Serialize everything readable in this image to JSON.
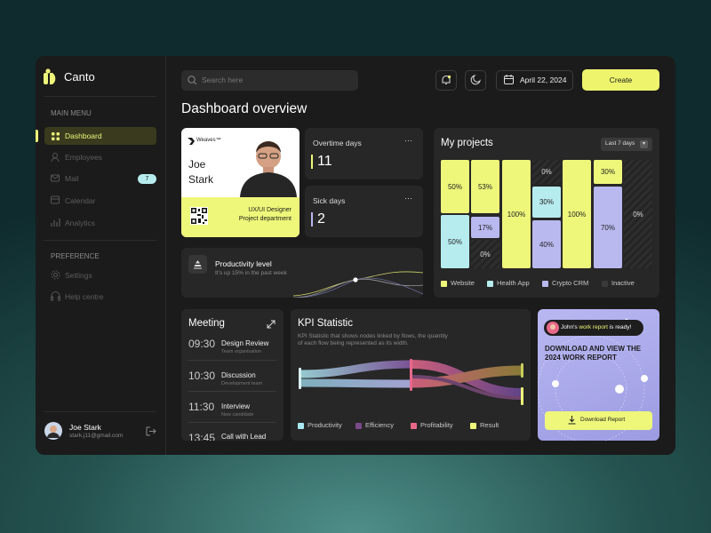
{
  "sidebar": {
    "brand": "Canto",
    "sections": [
      {
        "title": "MAIN MENU",
        "items": [
          {
            "label": "Dashboard"
          },
          {
            "label": "Employees"
          },
          {
            "label": "Mail",
            "badge": 7
          },
          {
            "label": "Calendar"
          },
          {
            "label": "Analytics"
          }
        ]
      },
      {
        "title": "PREFERENCE",
        "items": [
          {
            "label": "Settings"
          },
          {
            "label": "Help centre"
          }
        ]
      }
    ],
    "user": {
      "name": "Joe Stark",
      "email": "stark.j11@gmail.com"
    }
  },
  "topbar": {
    "search_placeholder": "Search here",
    "date": "April 22, 2024",
    "create": "Create"
  },
  "page_title": "Dashboard overview",
  "profile_card": {
    "company": "Weaves™",
    "name_lines": [
      "Joe",
      "Stark"
    ],
    "role": "UX/UI Designer",
    "department": "Project department"
  },
  "stats": [
    {
      "label": "Overtime days",
      "value": 11
    },
    {
      "label": "Sick days",
      "value": 2
    }
  ],
  "productivity": {
    "title": "Productivity level",
    "subtitle": "It's up 15% in the past week"
  },
  "projects": {
    "title": "My projects",
    "range": "Last 7 days",
    "columns": [
      [
        "50%",
        "50%"
      ],
      [
        "53%",
        "17%",
        "0%"
      ],
      [
        "100%"
      ],
      [
        "0%",
        "30%",
        "40%"
      ],
      [
        "100%"
      ],
      [
        "30%",
        "70%"
      ],
      [
        "0%"
      ]
    ],
    "legend": [
      "Website",
      "Health App",
      "Crypto CRM",
      "Inactive"
    ]
  },
  "meeting": {
    "title": "Meeting",
    "items": [
      {
        "time": "09:30",
        "title": "Design Review",
        "subtitle": "Team organisation"
      },
      {
        "time": "10:30",
        "title": "Discussion",
        "subtitle": "Development team"
      },
      {
        "time": "11:30",
        "title": "Interview",
        "subtitle": "New candidate"
      },
      {
        "time": "13:45",
        "title": "Call with Lead"
      }
    ]
  },
  "kpi": {
    "title": "KPI Statistic",
    "description": "KPI Statistic that shows nodes linked by flows, the quantity of each flow being represented as its width.",
    "legend": [
      "Productivity",
      "Efficiency",
      "Profitability",
      "Result"
    ]
  },
  "report": {
    "notice": [
      "John's ",
      "work report",
      " is ready!"
    ],
    "heading": "DOWNLOAD AND VIEW THE 2024 WORK REPORT",
    "button": "Download Report"
  }
}
